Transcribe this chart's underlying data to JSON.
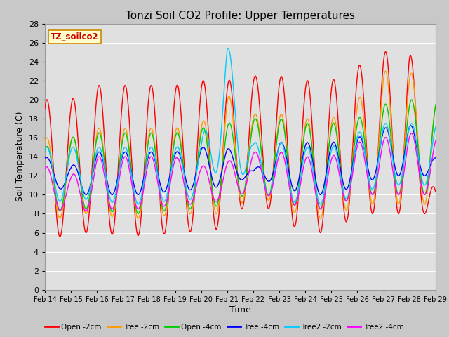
{
  "title": "Tonzi Soil CO2 Profile: Upper Temperatures",
  "xlabel": "Time",
  "ylabel": "Soil Temperature (C)",
  "ylim": [
    0,
    28
  ],
  "yticks": [
    0,
    2,
    4,
    6,
    8,
    10,
    12,
    14,
    16,
    18,
    20,
    22,
    24,
    26,
    28
  ],
  "xtick_labels": [
    "Feb 14",
    "Feb 15",
    "Feb 16",
    "Feb 17",
    "Feb 18",
    "Feb 19",
    "Feb 20",
    "Feb 21",
    "Feb 22",
    "Feb 23",
    "Feb 24",
    "Feb 25",
    "Feb 26",
    "Feb 27",
    "Feb 28",
    "Feb 29"
  ],
  "series_colors": [
    "#ff0000",
    "#ff9900",
    "#00cc00",
    "#0000ff",
    "#00ccff",
    "#ff00ff"
  ],
  "series_labels": [
    "Open -2cm",
    "Tree -2cm",
    "Open -4cm",
    "Tree -4cm",
    "Tree2 -2cm",
    "Tree2 -4cm"
  ],
  "fig_facecolor": "#c8c8c8",
  "plot_bg_color": "#e0e0e0",
  "grid_color": "#ffffff",
  "annotation": {
    "text": "TZ_soilco2",
    "facecolor": "#ffffcc",
    "edgecolor": "#cc8800"
  }
}
